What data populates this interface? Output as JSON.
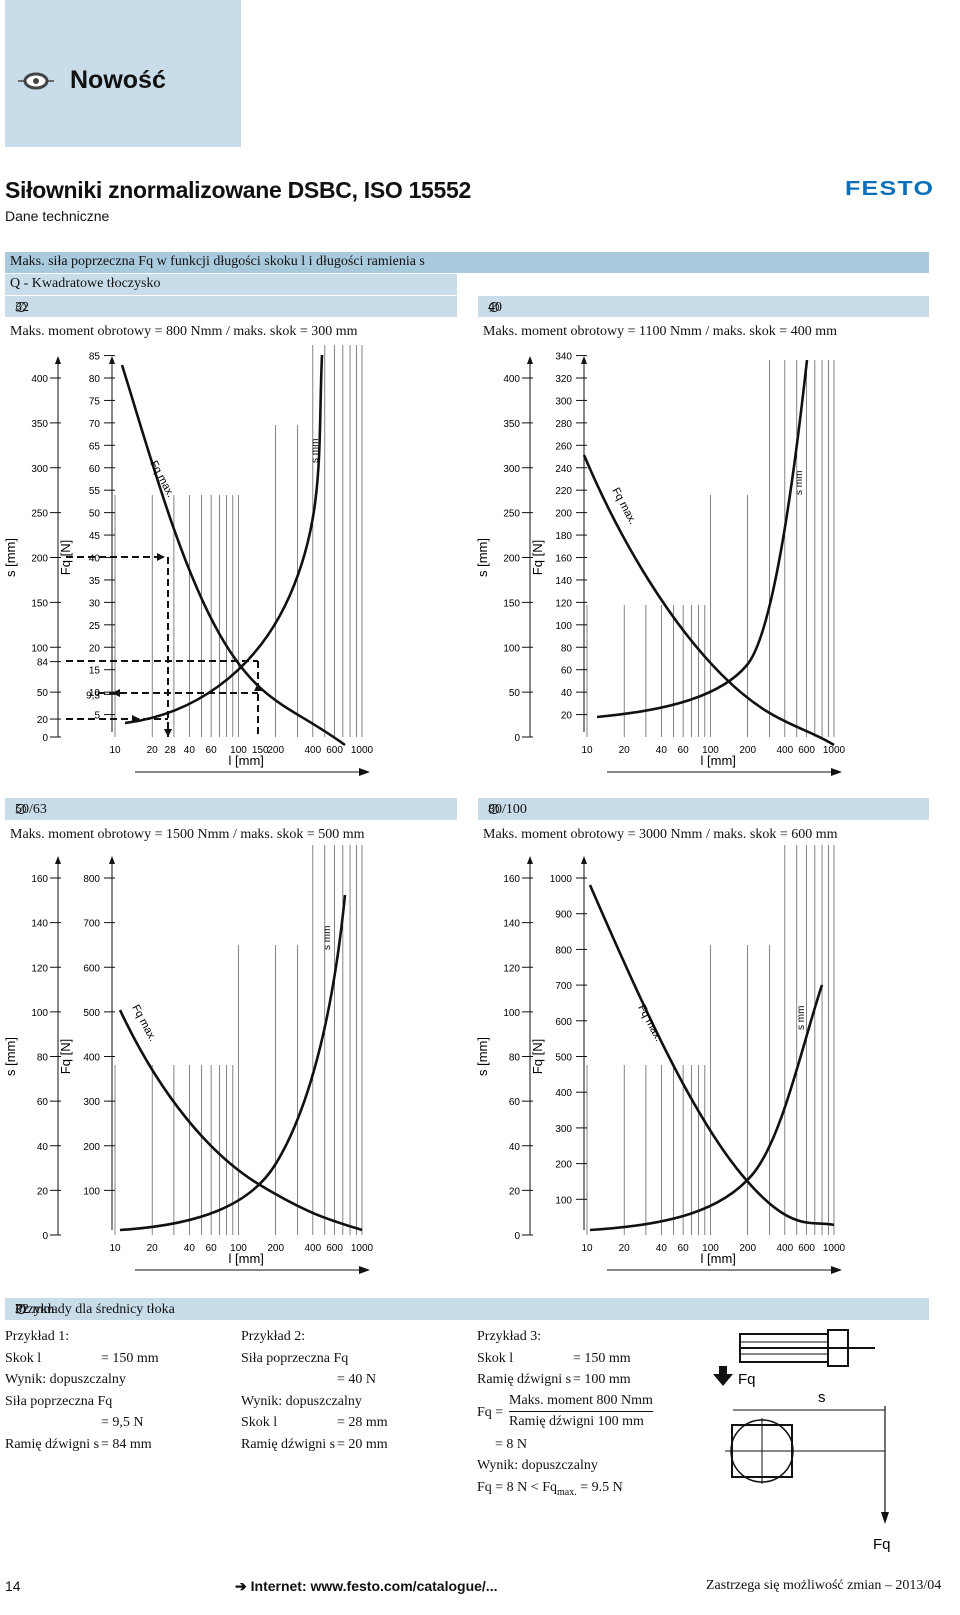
{
  "header": {
    "new_label": "Nowość",
    "title": "Siłowniki znormalizowane DSBC, ISO 15552",
    "subtitle": "Dane techniczne",
    "logo": "FESTO",
    "accent": "#c8dde9",
    "logo_color": "#0a6fb8"
  },
  "section": {
    "title": "Maks. siła poprzeczna Fq w funkcji długości skoku l i długości ramienia s",
    "subtitle": "Q - Kwadratowe tłoczysko"
  },
  "panels": [
    {
      "diameter": "32",
      "caption": "Maks. moment obrotowy = 800 Nmm / maks. skok = 300 mm"
    },
    {
      "diameter": "40",
      "caption": "Maks. moment obrotowy = 1100 Nmm / maks. skok = 400 mm"
    },
    {
      "diameter": "50/63",
      "caption": "Maks. moment obrotowy = 1500 Nmm / maks. skok = 500 mm"
    },
    {
      "diameter": "80/100",
      "caption": "Maks. moment obrotowy = 3000 Nmm / maks. skok = 600 mm"
    }
  ],
  "chart_labels": {
    "s_axis": "s [mm]",
    "fq_axis": "Fq [N]",
    "l_axis": "l [mm]",
    "fq_max": "Fq max.",
    "s_mm": "s mm"
  },
  "chart_data": [
    {
      "type": "line",
      "diameter": "32",
      "s_ticks": [
        "400",
        "350",
        "300",
        "250",
        "200",
        "150",
        "100",
        "84",
        "50",
        "20",
        "0"
      ],
      "fq_ticks": [
        "85",
        "80",
        "75",
        "70",
        "65",
        "60",
        "55",
        "50",
        "45",
        "40",
        "35",
        "30",
        "25",
        "20",
        "15",
        "10",
        "9,5",
        "5"
      ],
      "l_ticks": [
        "10",
        "20",
        "28",
        "40",
        "60",
        "100",
        "150",
        "200",
        "400",
        "600",
        "1000"
      ],
      "example_values": {
        "fq_40": 40,
        "l_28": 28,
        "s_20": 20,
        "l_150": 150,
        "s_84": 84,
        "fq_9_5": 9.5
      }
    },
    {
      "type": "line",
      "diameter": "40",
      "s_ticks": [
        "400",
        "350",
        "300",
        "250",
        "200",
        "150",
        "100",
        "50",
        "0"
      ],
      "fq_ticks": [
        "340",
        "320",
        "300",
        "280",
        "260",
        "240",
        "220",
        "200",
        "180",
        "160",
        "140",
        "120",
        "100",
        "80",
        "60",
        "40",
        "20"
      ],
      "l_ticks": [
        "10",
        "20",
        "40",
        "60",
        "100",
        "200",
        "400",
        "600",
        "1000"
      ]
    },
    {
      "type": "line",
      "diameter": "50/63",
      "s_ticks": [
        "160",
        "140",
        "120",
        "100",
        "80",
        "60",
        "40",
        "20",
        "0"
      ],
      "fq_ticks": [
        "800",
        "700",
        "600",
        "500",
        "400",
        "300",
        "200",
        "100"
      ],
      "l_ticks": [
        "10",
        "20",
        "40",
        "60",
        "100",
        "200",
        "400",
        "600",
        "1000"
      ]
    },
    {
      "type": "line",
      "diameter": "80/100",
      "s_ticks": [
        "160",
        "140",
        "120",
        "100",
        "80",
        "60",
        "40",
        "20",
        "0"
      ],
      "fq_ticks": [
        "1000",
        "900",
        "800",
        "700",
        "600",
        "500",
        "400",
        "300",
        "200",
        "100"
      ],
      "l_ticks": [
        "10",
        "20",
        "40",
        "60",
        "100",
        "200",
        "400",
        "600",
        "1000"
      ]
    }
  ],
  "examples": {
    "band_prefix": "Przykłady dla średnicy tłoka",
    "band_value": "32 mm",
    "ex1": {
      "title": "Przykład 1:",
      "r1": "Skok l",
      "r1v": "= 150 mm",
      "r2": "Wynik: dopuszczalny",
      "r3": "Siła poprzeczna Fq",
      "r4v": "= 9,5 N",
      "r5": "Ramię dźwigni s",
      "r5v": "= 84 mm"
    },
    "ex2": {
      "title": "Przykład 2:",
      "r1": "Siła poprzeczna Fq",
      "r2v": "= 40 N",
      "r3": "Wynik: dopuszczalny",
      "r4": "Skok l",
      "r4v": "= 28 mm",
      "r5": "Ramię dźwigni s",
      "r5v": "= 20 mm"
    },
    "ex3": {
      "title": "Przykład 3:",
      "r1": "Skok l",
      "r1v": "= 150 mm",
      "r2": "Ramię dźwigni s",
      "r2v": "= 100 mm",
      "fq_eq": "Fq =",
      "num": "Maks. moment 800 Nmm",
      "den": "Ramię dźwigni 100 mm",
      "res": "= 8 N",
      "r6": "Wynik: dopuszczalny",
      "r7a": "Fq = 8 N < Fq",
      "r7sub": "max.",
      "r7b": " = 9.5 N"
    },
    "diagram": {
      "fq": "Fq",
      "s": "s",
      "fq2": "Fq"
    }
  },
  "footer": {
    "page": "14",
    "link": "Internet: www.festo.com/catalogue/...",
    "note": "Zastrzega się możliwość zmian – 2013/04"
  }
}
